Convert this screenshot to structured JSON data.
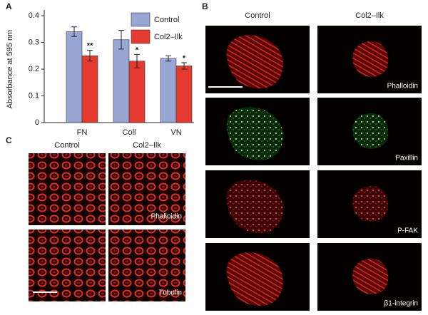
{
  "chart_data": {
    "type": "bar",
    "panel_label": "A",
    "y_label": "Absorbance at 595 nm",
    "categories": [
      "FN",
      "Coll",
      "VN"
    ],
    "series": [
      {
        "name": "Control",
        "color": "#98a6d4",
        "values": [
          0.34,
          0.31,
          0.24
        ],
        "errors": [
          0.018,
          0.035,
          0.01
        ]
      },
      {
        "name": "Col2–Ilk",
        "color": "#e53a30",
        "values": [
          0.25,
          0.23,
          0.212
        ],
        "errors": [
          0.02,
          0.025,
          0.012
        ],
        "significance": [
          "**",
          "*",
          "*"
        ]
      }
    ],
    "ylim": [
      0,
      0.4
    ],
    "yticks": [
      0,
      0.1,
      0.2,
      0.3,
      0.4
    ],
    "legend": "upper right"
  },
  "panel_b": {
    "label": "B",
    "columns": [
      "Control",
      "Col2–Ilk"
    ],
    "rows": [
      "Phalloidin",
      "Paxillin",
      "P-FAK",
      "β1-integrin"
    ]
  },
  "panel_c": {
    "label": "C",
    "columns": [
      "Control",
      "Col2–Ilk"
    ],
    "rows": [
      "Phalloidin",
      "Tubulin"
    ]
  }
}
